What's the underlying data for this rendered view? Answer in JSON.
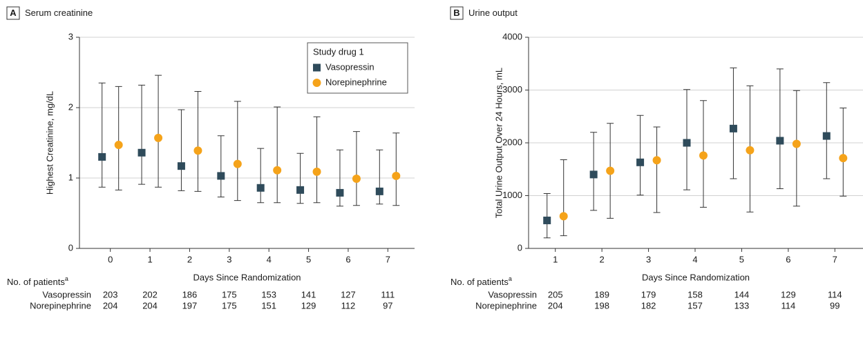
{
  "chart_data": [
    {
      "type": "errorbar",
      "panel": "A",
      "title": "Serum creatinine",
      "x_label": "Days Since Randomization",
      "y_label": "Highest Creatinine, mg/dL",
      "categories": [
        "0",
        "1",
        "2",
        "3",
        "4",
        "5",
        "6",
        "7"
      ],
      "ylim": [
        0,
        3
      ],
      "yticks": [
        0,
        1,
        2,
        3
      ],
      "grid": true,
      "legend_title": "Study drug 1",
      "legend": "upper right",
      "series": [
        {
          "name": "Vasopressin",
          "color": "#2f4b5b",
          "marker": "square",
          "values": [
            1.3,
            1.36,
            1.17,
            1.03,
            0.86,
            0.83,
            0.79,
            0.81
          ],
          "low": [
            0.87,
            0.91,
            0.82,
            0.73,
            0.65,
            0.64,
            0.6,
            0.63
          ],
          "high": [
            2.35,
            2.32,
            1.97,
            1.6,
            1.42,
            1.35,
            1.4,
            1.4
          ],
          "patients": [
            203,
            202,
            186,
            175,
            153,
            141,
            127,
            111
          ]
        },
        {
          "name": "Norepinephrine",
          "color": "#f5a31a",
          "marker": "circle",
          "values": [
            1.47,
            1.57,
            1.39,
            1.2,
            1.11,
            1.09,
            0.99,
            1.03
          ],
          "low": [
            0.83,
            0.87,
            0.81,
            0.68,
            0.65,
            0.65,
            0.61,
            0.61
          ],
          "high": [
            2.3,
            2.46,
            2.23,
            2.09,
            2.01,
            1.87,
            1.66,
            1.64
          ],
          "patients": [
            204,
            204,
            197,
            175,
            151,
            129,
            112,
            97
          ]
        }
      ],
      "patients_label": "No. of patients",
      "patients_footnote": "a"
    },
    {
      "type": "errorbar",
      "panel": "B",
      "title": "Urine output",
      "x_label": "Days Since Randomization",
      "y_label": "Total Urine Output Over 24 Hours, mL",
      "categories": [
        "1",
        "2",
        "3",
        "4",
        "5",
        "6",
        "7"
      ],
      "ylim": [
        0,
        4000
      ],
      "yticks": [
        0,
        1000,
        2000,
        3000,
        4000
      ],
      "grid": true,
      "series": [
        {
          "name": "Vasopressin",
          "color": "#2f4b5b",
          "marker": "square",
          "values": [
            530,
            1400,
            1630,
            2000,
            2270,
            2040,
            2130
          ],
          "low": [
            200,
            720,
            1010,
            1110,
            1320,
            1130,
            1320
          ],
          "high": [
            1040,
            2200,
            2520,
            3010,
            3420,
            3400,
            3140
          ],
          "patients": [
            205,
            189,
            179,
            158,
            144,
            129,
            114
          ]
        },
        {
          "name": "Norepinephrine",
          "color": "#f5a31a",
          "marker": "circle",
          "values": [
            610,
            1470,
            1670,
            1760,
            1860,
            1980,
            1710
          ],
          "low": [
            240,
            570,
            680,
            780,
            690,
            800,
            990
          ],
          "high": [
            1680,
            2370,
            2300,
            2800,
            3080,
            2990,
            2660
          ],
          "patients": [
            204,
            198,
            182,
            157,
            133,
            114,
            99
          ]
        }
      ],
      "patients_label": "No. of patients",
      "patients_footnote": "a"
    }
  ]
}
